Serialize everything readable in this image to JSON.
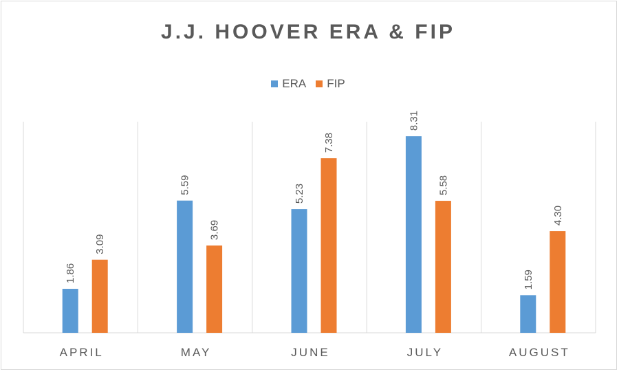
{
  "chart_data": {
    "type": "bar",
    "title": "J.J. HOOVER ERA & FIP",
    "categories": [
      "APRIL",
      "MAY",
      "JUNE",
      "JULY",
      "AUGUST"
    ],
    "series": [
      {
        "name": "ERA",
        "color": "#5b9bd5",
        "values": [
          1.86,
          5.59,
          5.23,
          8.31,
          1.59
        ],
        "labels": [
          "1.86",
          "5.59",
          "5.23",
          "8.31",
          "1.59"
        ]
      },
      {
        "name": "FIP",
        "color": "#ed7d31",
        "values": [
          3.09,
          3.69,
          7.38,
          5.58,
          4.3
        ],
        "labels": [
          "3.09",
          "3.69",
          "7.38",
          "5.58",
          "4.30"
        ]
      }
    ],
    "ylim": [
      0,
      10
    ],
    "legend": "top-center",
    "grid": "vertical category separators",
    "data_labels": "rotated vertical above bars"
  }
}
